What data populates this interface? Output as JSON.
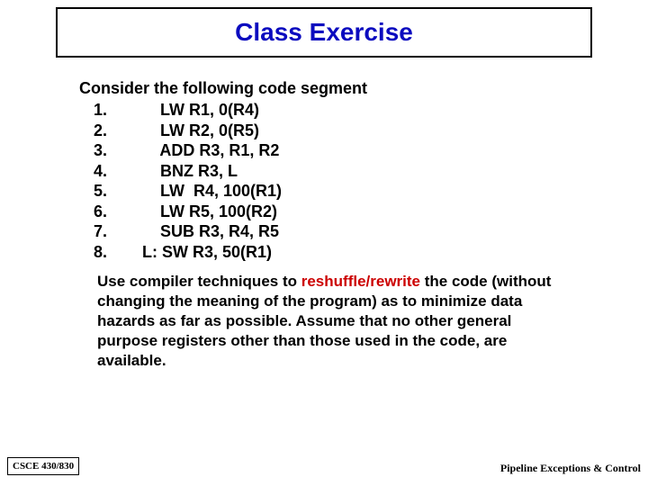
{
  "title": "Class Exercise",
  "intro": "Consider the following code segment",
  "code_lines": [
    {
      "num": "1.",
      "text": "LW R1, 0(R4)"
    },
    {
      "num": "2.",
      "text": "LW R2, 0(R5)"
    },
    {
      "num": "3.",
      "text": "ADD R3, R1, R2"
    },
    {
      "num": "4.",
      "text": "BNZ R3, L"
    },
    {
      "num": "5.",
      "text": "LW  R4, 100(R1)"
    },
    {
      "num": "6.",
      "text": "LW R5, 100(R2)"
    },
    {
      "num": "7.",
      "text": "SUB R3, R4, R5"
    },
    {
      "num": "8.",
      "text": "L: SW R3, 50(R1)",
      "noindent": true
    }
  ],
  "explain_pre": "Use compiler techniques to ",
  "explain_highlight": "reshuffle/rewrite",
  "explain_post": " the code (without changing the meaning of the program) as to minimize data hazards as far as possible. Assume that no other general purpose registers other than those used in the code, are available.",
  "footer_left": "CSCE 430/830",
  "footer_right": "Pipeline Exceptions & Control",
  "colors": {
    "title": "#0b0bbf",
    "highlight": "#cc0000",
    "text": "#000000",
    "border": "#000000",
    "background": "#ffffff"
  },
  "typography": {
    "title_fontsize": 28,
    "body_fontsize": 18,
    "explain_fontsize": 17,
    "footer_fontsize": 11
  }
}
